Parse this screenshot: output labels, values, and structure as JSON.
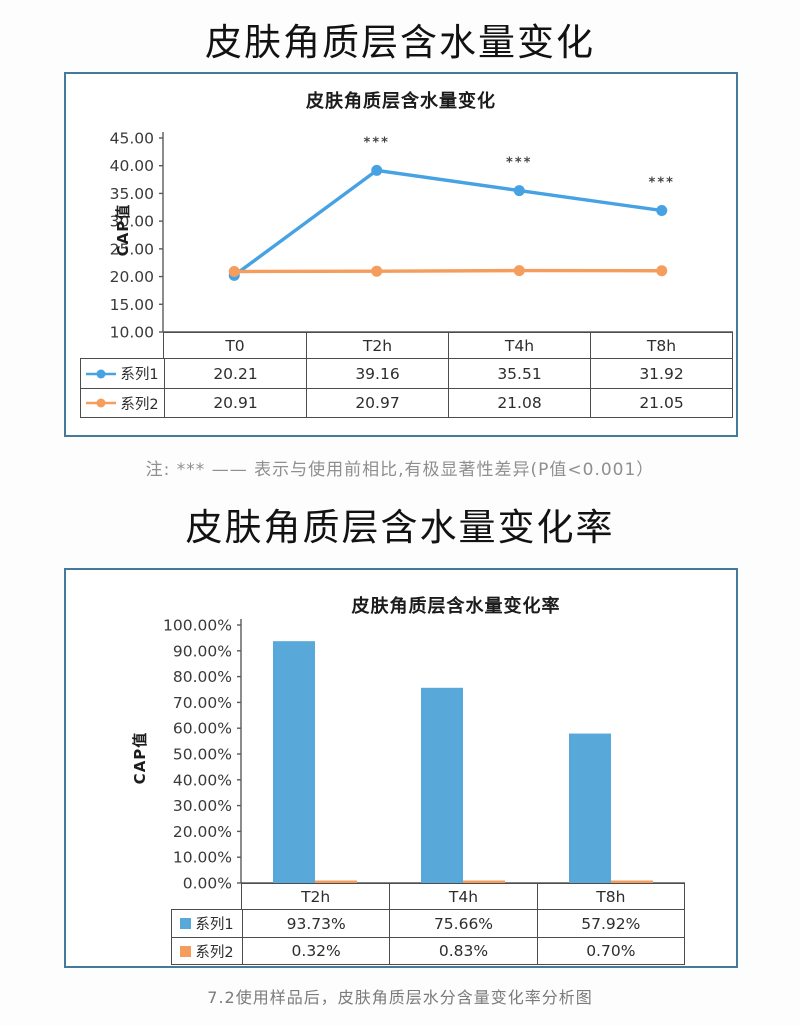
{
  "page": {
    "title1": "皮肤角质层含水量变化",
    "title2": "皮肤角质层含水量变化率",
    "note": "注: *** —— 表示与使用前相比,有极显著性差异(P值<0.001）",
    "caption": "7.2使用样品后，皮肤角质层水分含量变化率分析图"
  },
  "chart_data": [
    {
      "type": "line",
      "title": "皮肤角质层含水量变化",
      "ylabel": "CAP值",
      "categories": [
        "T0",
        "T2h",
        "T4h",
        "T8h"
      ],
      "series": [
        {
          "name": "系列1",
          "color": "#46a2e3",
          "values": [
            20.21,
            39.16,
            35.51,
            31.92
          ]
        },
        {
          "name": "系列2",
          "color": "#f49d5c",
          "values": [
            20.91,
            20.97,
            21.08,
            21.05
          ]
        }
      ],
      "ylim": [
        10,
        45
      ],
      "yticks": [
        "45.00",
        "40.00",
        "35.00",
        "30.00",
        "25.00",
        "20.00",
        "15.00",
        "10.00"
      ],
      "grid": false,
      "legend_position": "table-left",
      "annotations": [
        {
          "series": 0,
          "category": 1,
          "text": "***"
        },
        {
          "series": 0,
          "category": 2,
          "text": "***"
        },
        {
          "series": 0,
          "category": 3,
          "text": "***"
        }
      ],
      "table": {
        "header": [
          "T0",
          "T2h",
          "T4h",
          "T8h"
        ],
        "rows": [
          {
            "name": "系列1",
            "values": [
              "20.21",
              "39.16",
              "35.51",
              "31.92"
            ]
          },
          {
            "name": "系列2",
            "values": [
              "20.91",
              "20.97",
              "21.08",
              "21.05"
            ]
          }
        ]
      }
    },
    {
      "type": "bar",
      "title": "皮肤角质层含水量变化率",
      "ylabel": "CAP值",
      "categories": [
        "T2h",
        "T4h",
        "T8h"
      ],
      "series": [
        {
          "name": "系列1",
          "color": "#58a8da",
          "values": [
            93.73,
            75.66,
            57.92
          ]
        },
        {
          "name": "系列2",
          "color": "#f49d5c",
          "values": [
            0.32,
            0.83,
            0.7
          ]
        }
      ],
      "ylim": [
        0,
        100
      ],
      "yticks": [
        "100.00%",
        "90.00%",
        "80.00%",
        "70.00%",
        "60.00%",
        "50.00%",
        "40.00%",
        "30.00%",
        "20.00%",
        "10.00%",
        "0.00%"
      ],
      "grid": false,
      "legend_position": "table-left",
      "table": {
        "header": [
          "T2h",
          "T4h",
          "T8h"
        ],
        "rows": [
          {
            "name": "系列1",
            "values": [
              "93.73%",
              "75.66%",
              "57.92%"
            ]
          },
          {
            "name": "系列2",
            "values": [
              "0.32%",
              "0.83%",
              "0.70%"
            ]
          }
        ]
      }
    }
  ]
}
